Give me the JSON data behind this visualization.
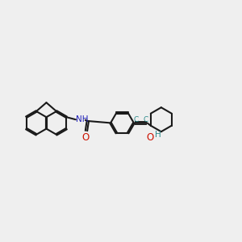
{
  "bg": "#efefef",
  "bc": "#1a1a1a",
  "nc": "#2222bb",
  "oc": "#cc1100",
  "tc": "#2a8a8a",
  "lw": 1.5,
  "doff": 0.028,
  "xlim": [
    0.0,
    10.0
  ],
  "ylim": [
    0.5,
    4.5
  ]
}
